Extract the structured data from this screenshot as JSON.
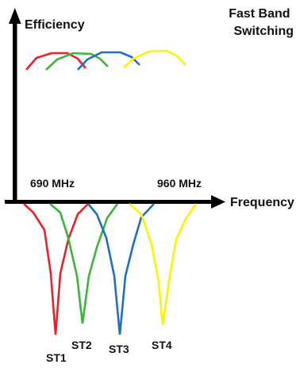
{
  "labels": {
    "y_axis": "Efficiency",
    "x_axis": "Frequency",
    "title": "Fast Band\nSwitching",
    "freq_low": "690 MHz",
    "freq_high": "960 MHz"
  },
  "states": [
    {
      "name": "ST1",
      "color": "#e8212b"
    },
    {
      "name": "ST2",
      "color": "#3db43a"
    },
    {
      "name": "ST3",
      "color": "#1f6fc4"
    },
    {
      "name": "ST4",
      "color": "#fff200"
    }
  ],
  "colors": {
    "axis": "#000000",
    "text": "#111111",
    "background": "#ffffff"
  }
}
